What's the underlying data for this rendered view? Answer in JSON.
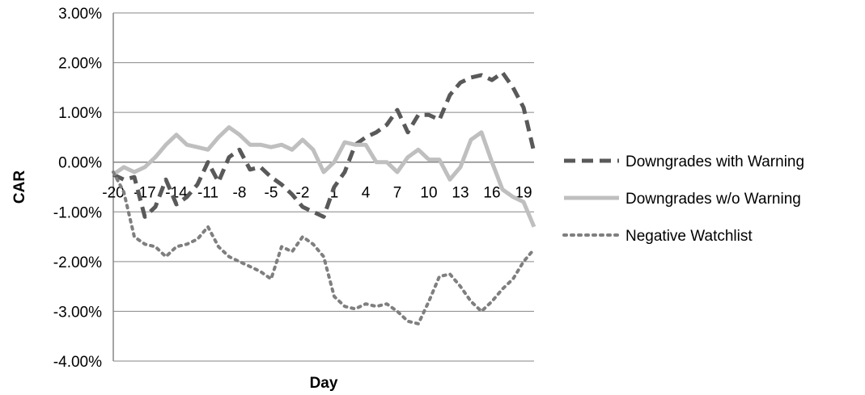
{
  "chart_data": {
    "type": "line",
    "title": "",
    "xlabel": "Day",
    "ylabel": "CAR",
    "ylim": [
      -4.0,
      3.0
    ],
    "y_unit": "%",
    "y_ticks": [
      "3.00%",
      "2.00%",
      "1.00%",
      "0.00%",
      "-1.00%",
      "-2.00%",
      "-3.00%",
      "-4.00%"
    ],
    "y_tick_values": [
      3,
      2,
      1,
      0,
      -1,
      -2,
      -3,
      -4
    ],
    "x_tick_labels": [
      "-20",
      "-17",
      "-14",
      "-11",
      "-8",
      "-5",
      "-2",
      "1",
      "4",
      "7",
      "10",
      "13",
      "16",
      "19"
    ],
    "x_tick_values": [
      -20,
      -17,
      -14,
      -11,
      -8,
      -5,
      -2,
      1,
      4,
      7,
      10,
      13,
      16,
      19
    ],
    "x": [
      -20,
      -19,
      -18,
      -17,
      -16,
      -15,
      -14,
      -13,
      -12,
      -11,
      -10,
      -9,
      -8,
      -7,
      -6,
      -5,
      -4,
      -3,
      -2,
      -1,
      0,
      1,
      2,
      3,
      4,
      5,
      6,
      7,
      8,
      9,
      10,
      11,
      12,
      13,
      14,
      15,
      16,
      17,
      18,
      19,
      20
    ],
    "grid": "horizontal",
    "legend_position": "right",
    "series": [
      {
        "name": "Downgrades with Warning",
        "style": "dashed",
        "color": "#595959",
        "values": [
          -0.25,
          -0.35,
          -0.3,
          -1.1,
          -0.9,
          -0.35,
          -0.85,
          -0.7,
          -0.45,
          0.0,
          -0.4,
          0.1,
          0.25,
          -0.15,
          -0.1,
          -0.3,
          -0.45,
          -0.65,
          -0.9,
          -1.0,
          -1.1,
          -0.5,
          -0.2,
          0.35,
          0.5,
          0.6,
          0.75,
          1.05,
          0.6,
          0.95,
          0.95,
          0.85,
          1.35,
          1.6,
          1.7,
          1.75,
          1.65,
          1.8,
          1.5,
          1.1,
          0.2
        ]
      },
      {
        "name": "Downgrades w/o Warning",
        "style": "solid",
        "color": "#bfbfbf",
        "values": [
          -0.25,
          -0.1,
          -0.2,
          -0.1,
          0.1,
          0.35,
          0.55,
          0.35,
          0.3,
          0.25,
          0.5,
          0.7,
          0.55,
          0.35,
          0.35,
          0.3,
          0.35,
          0.25,
          0.45,
          0.25,
          -0.2,
          0.0,
          0.4,
          0.35,
          0.35,
          0.0,
          0.0,
          -0.2,
          0.1,
          0.25,
          0.05,
          0.05,
          -0.35,
          -0.1,
          0.45,
          0.6,
          0.0,
          -0.55,
          -0.7,
          -0.8,
          -1.3
        ]
      },
      {
        "name": "Negative Watchlist",
        "style": "dotted",
        "color": "#7f7f7f",
        "values": [
          -0.2,
          -0.6,
          -1.5,
          -1.65,
          -1.7,
          -1.9,
          -1.7,
          -1.65,
          -1.55,
          -1.3,
          -1.7,
          -1.9,
          -2.0,
          -2.1,
          -2.2,
          -2.35,
          -1.7,
          -1.8,
          -1.5,
          -1.65,
          -1.9,
          -2.7,
          -2.9,
          -2.95,
          -2.85,
          -2.9,
          -2.85,
          -3.0,
          -3.2,
          -3.25,
          -2.8,
          -2.3,
          -2.25,
          -2.5,
          -2.8,
          -3.0,
          -2.8,
          -2.55,
          -2.35,
          -2.0,
          -1.75
        ]
      }
    ]
  }
}
